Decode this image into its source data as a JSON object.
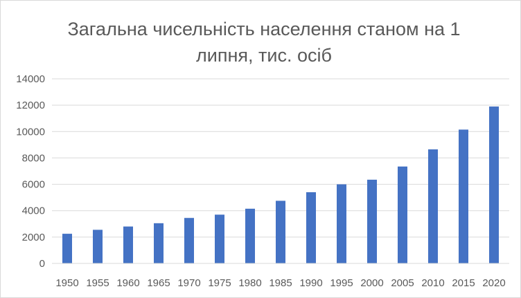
{
  "chart_data": {
    "type": "bar",
    "title": "Загальна чисельність населення станом на 1 липня, тис. осіб",
    "xlabel": "",
    "ylabel": "",
    "categories": [
      "1950",
      "1955",
      "1960",
      "1965",
      "1970",
      "1975",
      "1980",
      "1985",
      "1990",
      "1995",
      "2000",
      "2005",
      "2010",
      "2015",
      "2020"
    ],
    "values": [
      2250,
      2550,
      2800,
      3050,
      3450,
      3700,
      4150,
      4750,
      5400,
      6000,
      6350,
      7350,
      8650,
      10150,
      11900
    ],
    "ylim": [
      0,
      14000
    ],
    "yticks": [
      0,
      2000,
      4000,
      6000,
      8000,
      10000,
      12000,
      14000
    ],
    "grid": true,
    "legend": "none",
    "bar_color": "#4472C4",
    "grid_color": "#d9d9d9"
  }
}
